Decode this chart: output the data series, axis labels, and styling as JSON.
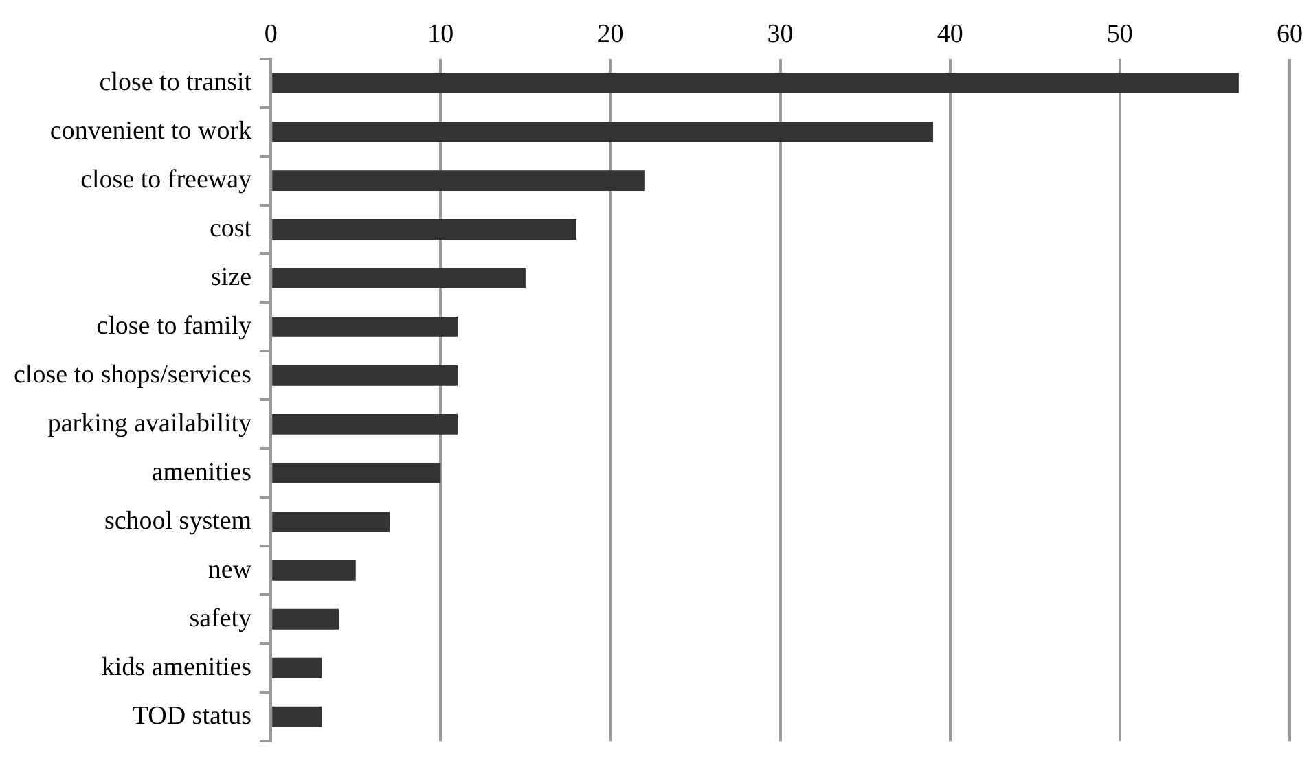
{
  "chart_data": {
    "type": "bar",
    "orientation": "horizontal",
    "categories": [
      "close to transit",
      "convenient to work",
      "close to freeway",
      "cost",
      "size",
      "close to family",
      "close to shops/services",
      "parking availability",
      "amenities",
      "school system",
      "new",
      "safety",
      "kids amenities",
      "TOD status"
    ],
    "values": [
      57,
      39,
      22,
      18,
      15,
      11,
      11,
      11,
      10,
      7,
      5,
      4,
      3,
      3
    ],
    "color": "#333333",
    "xlim": [
      0,
      60
    ],
    "xticks": [
      0,
      10,
      20,
      30,
      40,
      50,
      60
    ],
    "grid": "x",
    "legend": false
  }
}
